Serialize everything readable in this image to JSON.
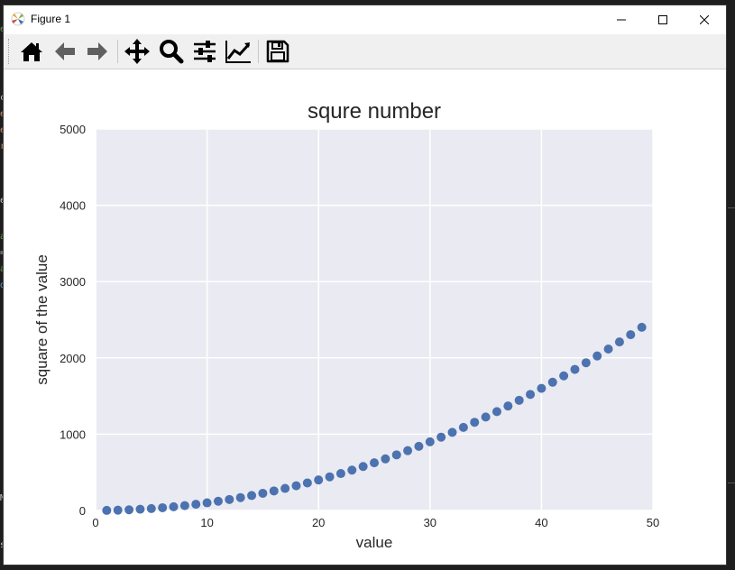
{
  "window": {
    "title": "Figure 1"
  },
  "toolbar": {
    "buttons": [
      {
        "name": "home-icon"
      },
      {
        "name": "back-arrow-icon"
      },
      {
        "name": "forward-arrow-icon"
      },
      {
        "name": "pan-move-icon"
      },
      {
        "name": "zoom-magnifier-icon"
      },
      {
        "name": "subplots-config-icon"
      },
      {
        "name": "edit-axis-icon"
      },
      {
        "name": "save-floppy-icon"
      }
    ]
  },
  "colors": {
    "plot_background": "#eaeaf2",
    "grid": "#ffffff",
    "marker": "#4c72b0"
  },
  "chart_data": {
    "type": "scatter",
    "title": "squre number",
    "xlabel": "value",
    "ylabel": "square of the value",
    "xlim": [
      0,
      50
    ],
    "ylim": [
      0,
      5000
    ],
    "xticks": [
      0,
      10,
      20,
      30,
      40,
      50
    ],
    "yticks": [
      0,
      1000,
      2000,
      3000,
      4000,
      5000
    ],
    "grid": true,
    "x": [
      1,
      2,
      3,
      4,
      5,
      6,
      7,
      8,
      9,
      10,
      11,
      12,
      13,
      14,
      15,
      16,
      17,
      18,
      19,
      20,
      21,
      22,
      23,
      24,
      25,
      26,
      27,
      28,
      29,
      30,
      31,
      32,
      33,
      34,
      35,
      36,
      37,
      38,
      39,
      40,
      41,
      42,
      43,
      44,
      45,
      46,
      47,
      48,
      49
    ],
    "y": [
      1,
      4,
      9,
      16,
      25,
      36,
      49,
      64,
      81,
      100,
      121,
      144,
      169,
      196,
      225,
      256,
      289,
      324,
      361,
      400,
      441,
      484,
      529,
      576,
      625,
      676,
      729,
      784,
      841,
      900,
      961,
      1024,
      1089,
      1156,
      1225,
      1296,
      1369,
      1444,
      1521,
      1600,
      1681,
      1764,
      1849,
      1936,
      2025,
      2116,
      2209,
      2304,
      2401
    ]
  }
}
